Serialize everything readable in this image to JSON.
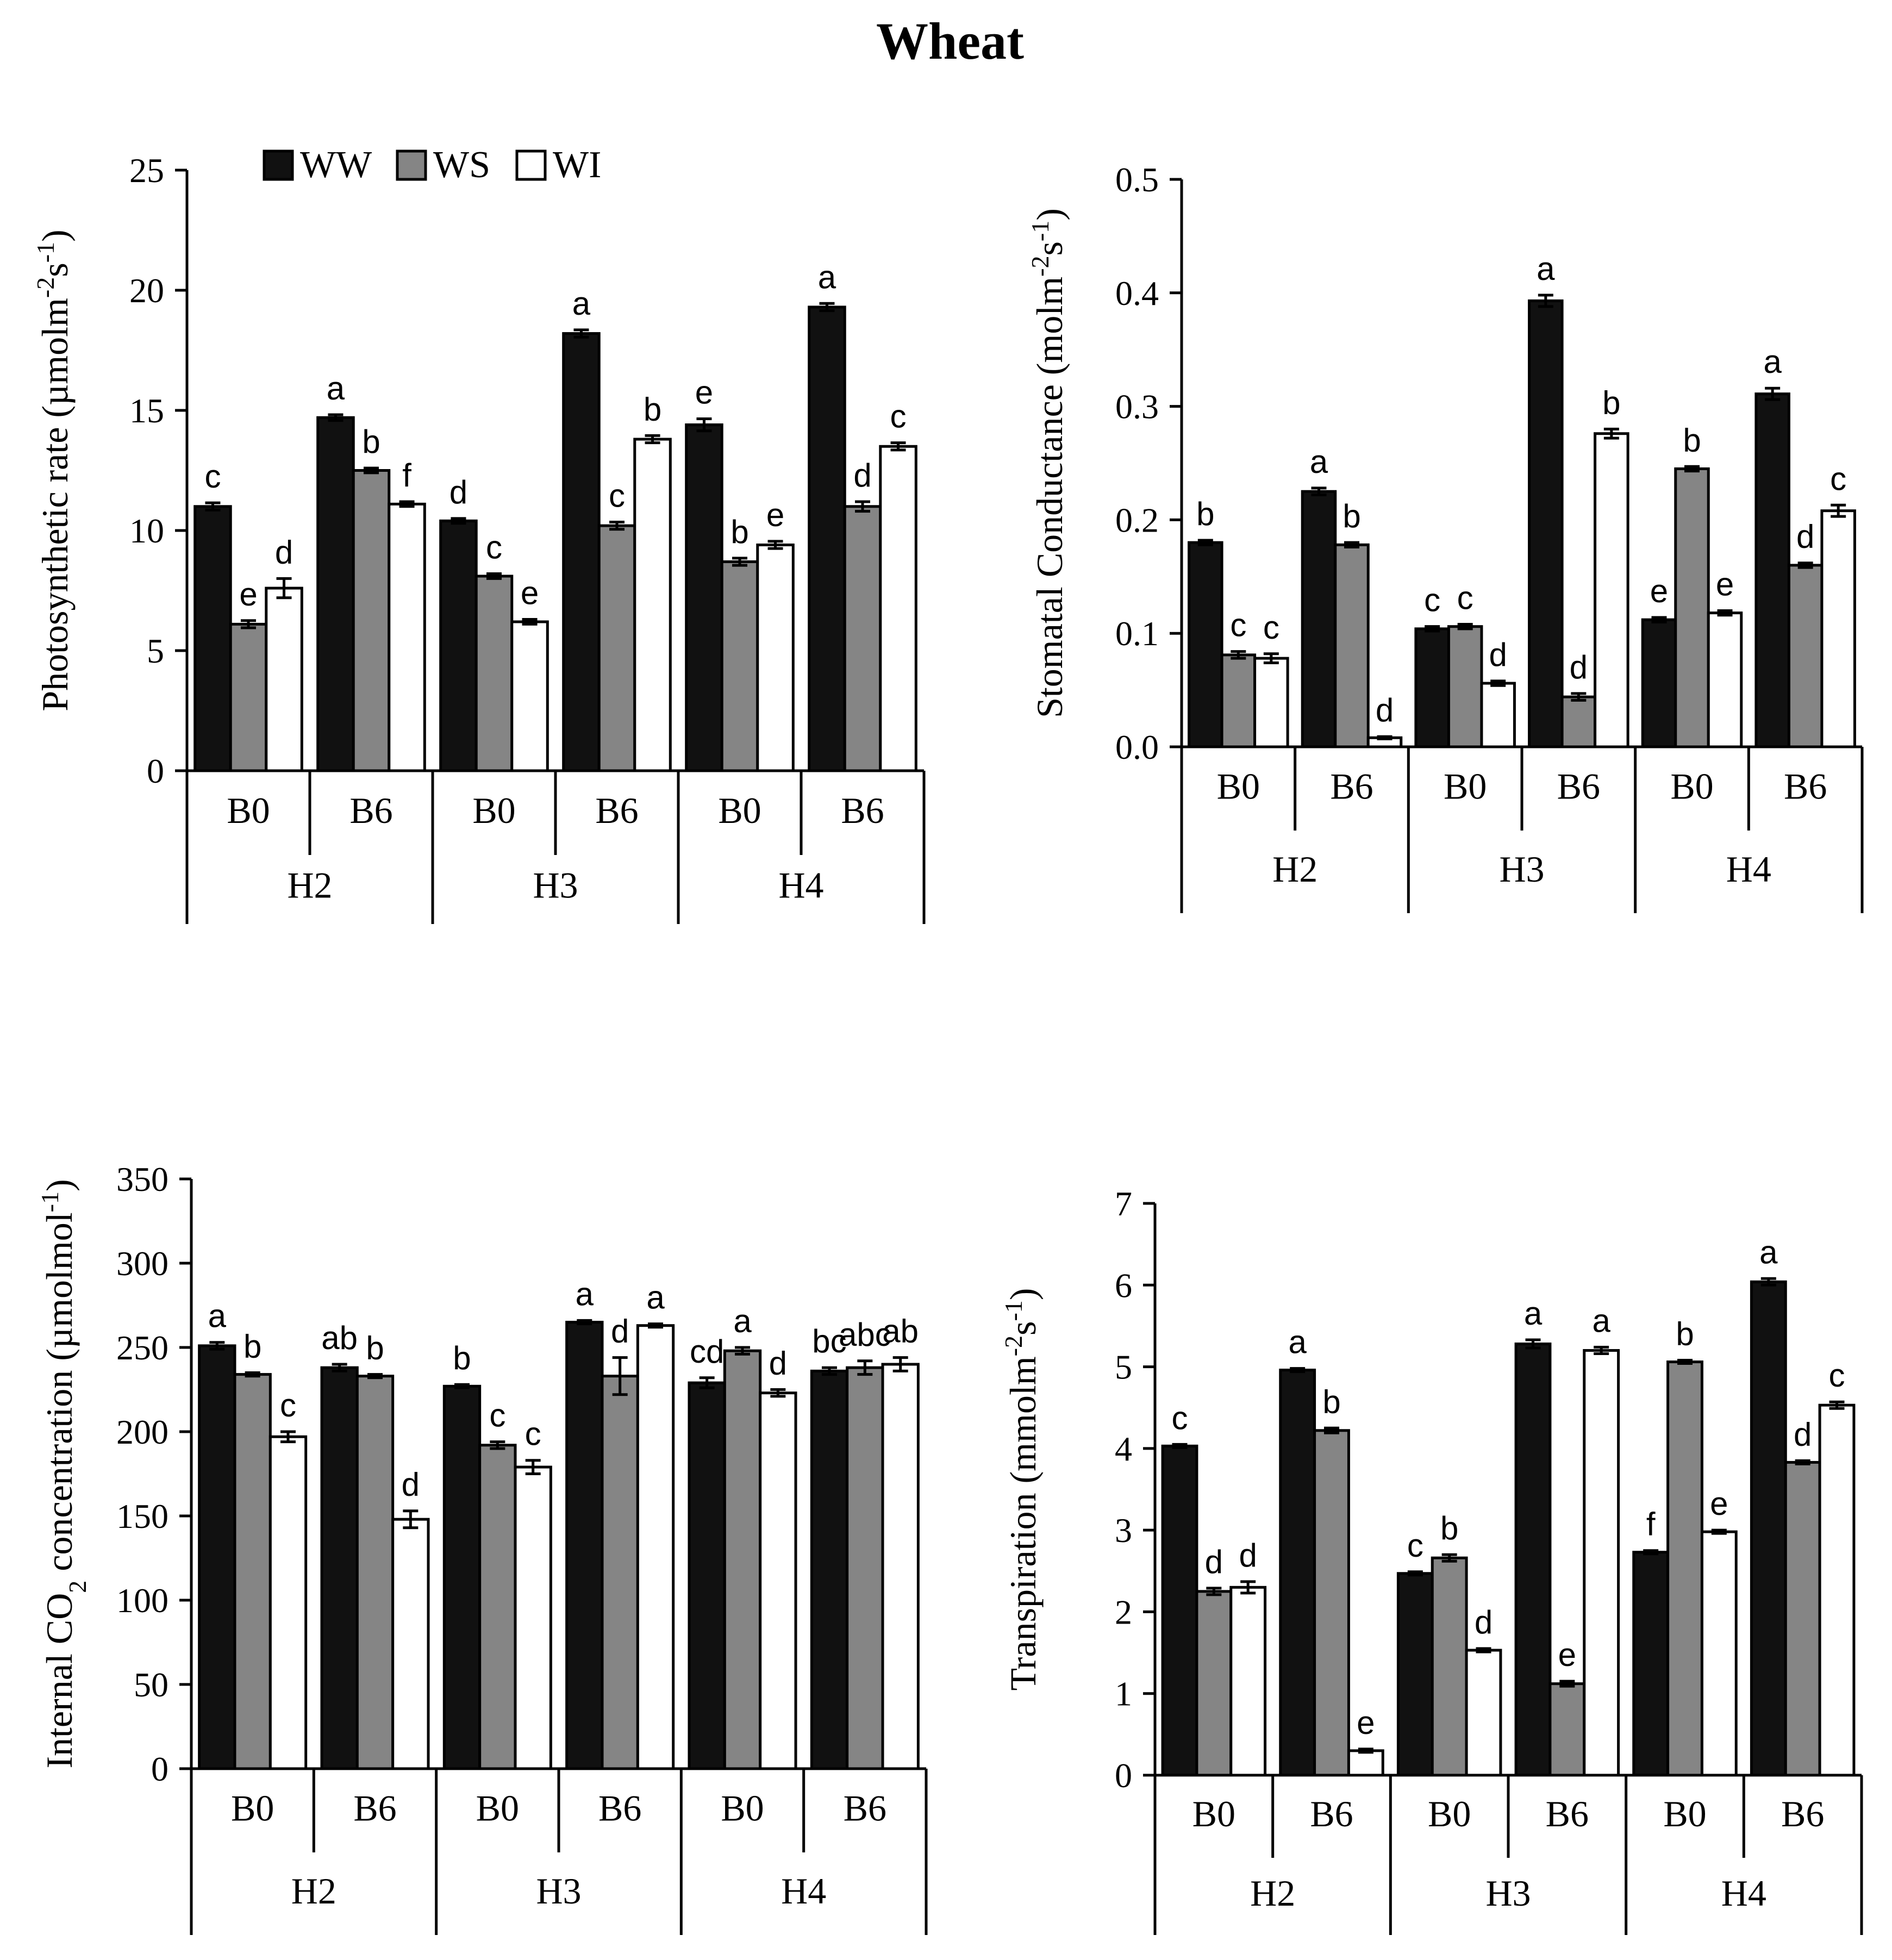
{
  "figure_title": "Wheat",
  "legend": [
    {
      "name": "WW",
      "color": "#111111"
    },
    {
      "name": "WS",
      "color": "#858585"
    },
    {
      "name": "WI",
      "color": "#ffffff"
    }
  ],
  "colors": {
    "WW": "#111111",
    "WS": "#858585",
    "WI": "#ffffff",
    "axis": "#000000"
  },
  "chart_data": [
    {
      "id": "photosynthesis",
      "type": "bar",
      "title": "",
      "ylabel_main": "Photosynthetic rate (µmolm",
      "ylabel_sup1": "-2",
      "ylabel_mid": "s",
      "ylabel_sup2": "-1",
      "ylabel_end": ")",
      "ylim": [
        0,
        25
      ],
      "yticks": [
        0,
        5,
        10,
        15,
        20,
        25
      ],
      "ytick_labels": [
        "0",
        "5",
        "10",
        "15",
        "20",
        "25"
      ],
      "categories": [
        "B0",
        "B6",
        "B0",
        "B6",
        "B0",
        "B6"
      ],
      "groups": [
        "H2",
        "H3",
        "H4"
      ],
      "series": [
        {
          "name": "WW",
          "values": [
            11.0,
            14.7,
            10.4,
            18.2,
            14.4,
            19.3
          ],
          "errors": [
            0.15,
            0.12,
            0.1,
            0.15,
            0.25,
            0.15
          ],
          "letters": [
            "c",
            "a",
            "d",
            "a",
            "e",
            "a"
          ]
        },
        {
          "name": "WS",
          "values": [
            6.1,
            12.5,
            8.1,
            10.2,
            8.7,
            11.0
          ],
          "errors": [
            0.15,
            0.1,
            0.1,
            0.15,
            0.15,
            0.2
          ],
          "letters": [
            "e",
            "b",
            "c",
            "c",
            "b",
            "d"
          ]
        },
        {
          "name": "WI",
          "values": [
            7.6,
            11.1,
            6.2,
            13.8,
            9.4,
            13.5
          ],
          "errors": [
            0.4,
            0.1,
            0.1,
            0.15,
            0.15,
            0.15
          ],
          "letters": [
            "d",
            "f",
            "e",
            "b",
            "e",
            "c"
          ]
        }
      ]
    },
    {
      "id": "stomatal",
      "type": "bar",
      "title": "",
      "ylabel_main": "Stomatal Conductance (molm",
      "ylabel_sup1": "-2",
      "ylabel_mid": "s",
      "ylabel_sup2": "-1",
      "ylabel_end": ")",
      "ylim": [
        0,
        0.5
      ],
      "yticks": [
        0,
        0.1,
        0.2,
        0.3,
        0.4,
        0.5
      ],
      "ytick_labels": [
        "0.0",
        "0.1",
        "0.2",
        "0.3",
        "0.4",
        "0.5"
      ],
      "categories": [
        "B0",
        "B6",
        "B0",
        "B6",
        "B0",
        "B6"
      ],
      "groups": [
        "H2",
        "H3",
        "H4"
      ],
      "series": [
        {
          "name": "WW",
          "values": [
            0.18,
            0.225,
            0.104,
            0.393,
            0.112,
            0.311
          ],
          "errors": [
            0.002,
            0.003,
            0.002,
            0.005,
            0.002,
            0.005
          ],
          "letters": [
            "b",
            "a",
            "c",
            "a",
            "e",
            "a"
          ]
        },
        {
          "name": "WS",
          "values": [
            0.081,
            0.178,
            0.106,
            0.044,
            0.245,
            0.16
          ],
          "errors": [
            0.003,
            0.002,
            0.002,
            0.003,
            0.002,
            0.002
          ],
          "letters": [
            "c",
            "b",
            "c",
            "d",
            "b",
            "d"
          ]
        },
        {
          "name": "WI",
          "values": [
            0.078,
            0.008,
            0.056,
            0.276,
            0.118,
            0.208
          ],
          "errors": [
            0.004,
            0.001,
            0.002,
            0.004,
            0.002,
            0.005
          ],
          "letters": [
            "c",
            "d",
            "d",
            "b",
            "e",
            "c"
          ]
        }
      ]
    },
    {
      "id": "internal_co2",
      "type": "bar",
      "title": "",
      "ylabel_main": "Internal CO",
      "ylabel_sub": "2",
      "ylabel_main2": " concentration (µmolmol",
      "ylabel_sup1": "-1",
      "ylabel_end": ")",
      "ylim": [
        0,
        350
      ],
      "yticks": [
        0,
        50,
        100,
        150,
        200,
        250,
        300,
        350
      ],
      "ytick_labels": [
        "0",
        "50",
        "100",
        "150",
        "200",
        "250",
        "300",
        "350"
      ],
      "categories": [
        "B0",
        "B6",
        "B0",
        "B6",
        "B0",
        "B6"
      ],
      "groups": [
        "H2",
        "H3",
        "H4"
      ],
      "series": [
        {
          "name": "WW",
          "values": [
            251,
            238,
            227,
            265,
            229,
            236
          ],
          "errors": [
            2,
            2,
            1,
            1,
            3,
            2
          ],
          "letters": [
            "a",
            "ab",
            "b",
            "a",
            "cd",
            "bc"
          ]
        },
        {
          "name": "WS",
          "values": [
            234,
            233,
            192,
            233,
            248,
            238
          ],
          "errors": [
            1,
            1,
            2,
            11,
            2,
            4
          ],
          "letters": [
            "b",
            "b",
            "c",
            "d",
            "a",
            "abc"
          ]
        },
        {
          "name": "WI",
          "values": [
            197,
            148,
            179,
            263,
            223,
            240
          ],
          "errors": [
            3,
            5,
            4,
            1,
            2,
            4
          ],
          "letters": [
            "c",
            "d",
            "c",
            "a",
            "d",
            "ab"
          ]
        }
      ]
    },
    {
      "id": "transpiration",
      "type": "bar",
      "title": "",
      "ylabel_main": "Transpiration (mmolm",
      "ylabel_sup1": "-2",
      "ylabel_mid": "s",
      "ylabel_sup2": "-1",
      "ylabel_end": ")",
      "ylim": [
        0,
        7
      ],
      "yticks": [
        0,
        1,
        2,
        3,
        4,
        5,
        6,
        7
      ],
      "ytick_labels": [
        "0",
        "1",
        "2",
        "3",
        "4",
        "5",
        "6",
        "7"
      ],
      "categories": [
        "B0",
        "B6",
        "B0",
        "B6",
        "B0",
        "B6"
      ],
      "groups": [
        "H2",
        "H3",
        "H4"
      ],
      "series": [
        {
          "name": "WW",
          "values": [
            4.03,
            4.96,
            2.47,
            5.28,
            2.73,
            6.04
          ],
          "errors": [
            0.02,
            0.02,
            0.02,
            0.05,
            0.02,
            0.04
          ],
          "letters": [
            "c",
            "a",
            "c",
            "a",
            "f",
            "a"
          ]
        },
        {
          "name": "WS",
          "values": [
            2.25,
            4.22,
            2.66,
            1.12,
            5.06,
            3.83
          ],
          "errors": [
            0.04,
            0.03,
            0.04,
            0.03,
            0.02,
            0.02
          ],
          "letters": [
            "d",
            "b",
            "b",
            "e",
            "b",
            "d"
          ]
        },
        {
          "name": "WI",
          "values": [
            2.3,
            0.3,
            1.53,
            5.2,
            2.98,
            4.53
          ],
          "errors": [
            0.07,
            0.02,
            0.02,
            0.04,
            0.02,
            0.04
          ],
          "letters": [
            "d",
            "e",
            "d",
            "a",
            "e",
            "c"
          ]
        }
      ]
    }
  ]
}
